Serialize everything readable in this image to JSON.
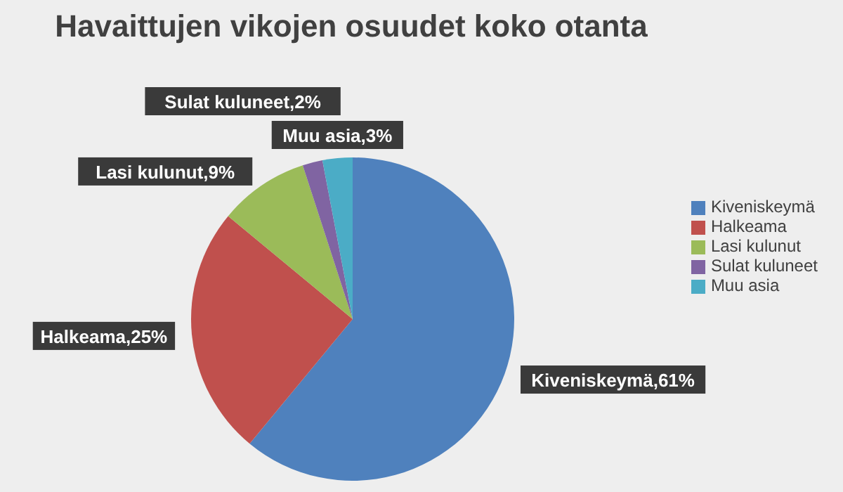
{
  "chart_data": {
    "type": "pie",
    "title": "Havaittujen vikojen osuudet koko otanta",
    "categories": [
      "Kiveniskeymä",
      "Halkeama",
      "Lasi kulunut",
      "Sulat kuluneet",
      "Muu asia"
    ],
    "values": [
      61,
      25,
      9,
      2,
      3
    ],
    "colors": [
      "#4f81bd",
      "#c0504d",
      "#9bbb59",
      "#8064a2",
      "#4bacc6"
    ],
    "value_labels": [
      "Kiveniskeymä,61%",
      "Halkeama,25%",
      "Lasi kulunut,9%",
      "Sulat kuluneet,2%",
      "Muu asia,3%"
    ],
    "legend": "right"
  }
}
